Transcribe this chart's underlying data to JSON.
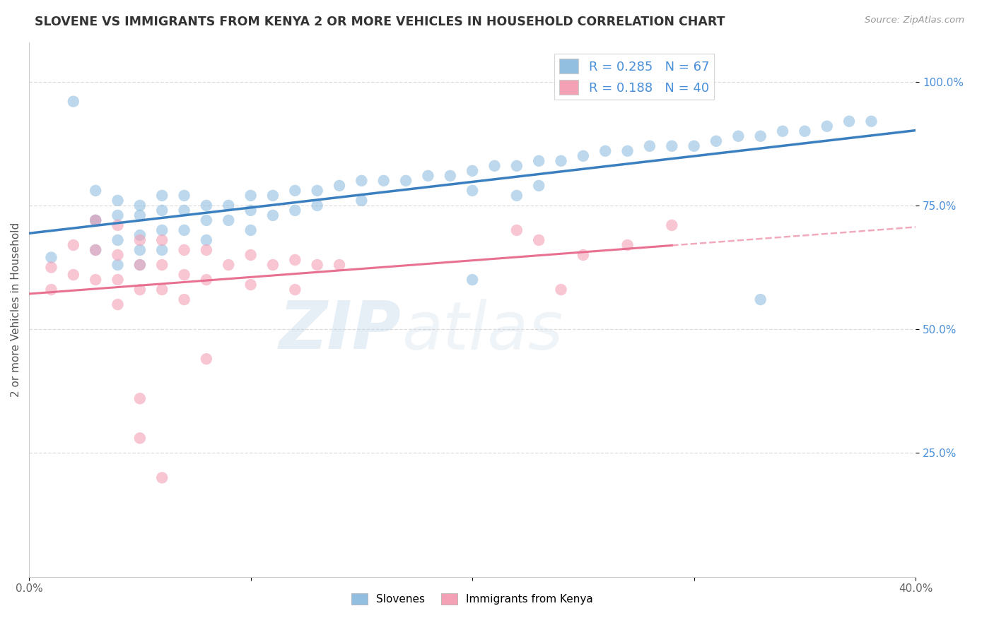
{
  "title": "SLOVENE VS IMMIGRANTS FROM KENYA 2 OR MORE VEHICLES IN HOUSEHOLD CORRELATION CHART",
  "source": "Source: ZipAtlas.com",
  "xlabel_bottom": [
    "Slovenes",
    "Immigrants from Kenya"
  ],
  "ylabel": "2 or more Vehicles in Household",
  "xmin": 0.0,
  "xmax": 0.4,
  "ymin": 0.0,
  "ymax": 1.08,
  "y_ticks": [
    0.25,
    0.5,
    0.75,
    1.0
  ],
  "y_tick_labels": [
    "25.0%",
    "50.0%",
    "75.0%",
    "100.0%"
  ],
  "slovene_R": 0.285,
  "slovene_N": 67,
  "kenya_R": 0.188,
  "kenya_N": 40,
  "slovene_color": "#92bfe0",
  "kenya_color": "#f4a0b5",
  "slovene_line_color": "#3a7fbf",
  "kenya_line_color": "#e87090",
  "background_color": "#ffffff",
  "grid_color": "#dddddd",
  "slovene_x": [
    0.01,
    0.02,
    0.03,
    0.03,
    0.03,
    0.03,
    0.04,
    0.04,
    0.04,
    0.04,
    0.05,
    0.05,
    0.05,
    0.05,
    0.05,
    0.06,
    0.06,
    0.06,
    0.06,
    0.07,
    0.07,
    0.07,
    0.08,
    0.08,
    0.08,
    0.09,
    0.09,
    0.1,
    0.1,
    0.1,
    0.11,
    0.11,
    0.12,
    0.12,
    0.13,
    0.13,
    0.14,
    0.15,
    0.15,
    0.16,
    0.17,
    0.18,
    0.19,
    0.2,
    0.2,
    0.21,
    0.22,
    0.22,
    0.23,
    0.23,
    0.24,
    0.25,
    0.26,
    0.27,
    0.28,
    0.29,
    0.3,
    0.31,
    0.32,
    0.33,
    0.34,
    0.35,
    0.36,
    0.37,
    0.38,
    0.2,
    0.33
  ],
  "slovene_y": [
    0.645,
    0.96,
    0.72,
    0.78,
    0.72,
    0.66,
    0.76,
    0.73,
    0.68,
    0.63,
    0.75,
    0.73,
    0.69,
    0.66,
    0.63,
    0.77,
    0.74,
    0.7,
    0.66,
    0.77,
    0.74,
    0.7,
    0.75,
    0.72,
    0.68,
    0.75,
    0.72,
    0.77,
    0.74,
    0.7,
    0.77,
    0.73,
    0.78,
    0.74,
    0.78,
    0.75,
    0.79,
    0.8,
    0.76,
    0.8,
    0.8,
    0.81,
    0.81,
    0.82,
    0.78,
    0.83,
    0.83,
    0.77,
    0.84,
    0.79,
    0.84,
    0.85,
    0.86,
    0.86,
    0.87,
    0.87,
    0.87,
    0.88,
    0.89,
    0.89,
    0.9,
    0.9,
    0.91,
    0.92,
    0.92,
    0.6,
    0.56
  ],
  "kenya_x": [
    0.01,
    0.01,
    0.02,
    0.02,
    0.03,
    0.03,
    0.03,
    0.04,
    0.04,
    0.04,
    0.04,
    0.05,
    0.05,
    0.05,
    0.06,
    0.06,
    0.06,
    0.07,
    0.07,
    0.07,
    0.08,
    0.08,
    0.09,
    0.1,
    0.1,
    0.11,
    0.12,
    0.12,
    0.13,
    0.14,
    0.05,
    0.05,
    0.06,
    0.08,
    0.22,
    0.23,
    0.24,
    0.25,
    0.27,
    0.29
  ],
  "kenya_y": [
    0.625,
    0.58,
    0.67,
    0.61,
    0.72,
    0.66,
    0.6,
    0.71,
    0.65,
    0.6,
    0.55,
    0.68,
    0.63,
    0.58,
    0.68,
    0.63,
    0.58,
    0.66,
    0.61,
    0.56,
    0.66,
    0.6,
    0.63,
    0.65,
    0.59,
    0.63,
    0.64,
    0.58,
    0.63,
    0.63,
    0.36,
    0.28,
    0.2,
    0.44,
    0.7,
    0.68,
    0.58,
    0.65,
    0.67,
    0.71
  ],
  "watermark_zip": "ZIP",
  "watermark_atlas": "atlas",
  "legend_slovene_label": "R = 0.285   N = 67",
  "legend_kenya_label": "R = 0.188   N = 40"
}
